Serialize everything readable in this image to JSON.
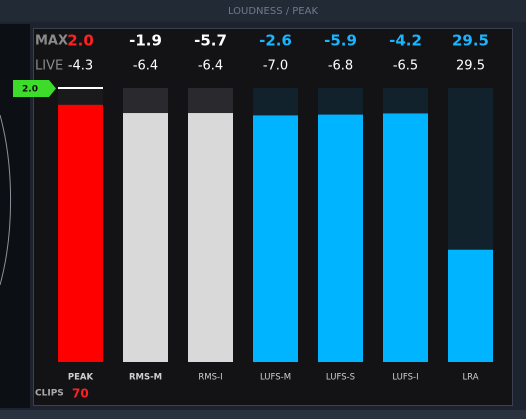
{
  "header": {
    "title": "LOUDNESS / PEAK"
  },
  "row_labels": {
    "max": "MAX",
    "live": "LIVE",
    "clips": "CLIPS"
  },
  "clips": 70,
  "meters": [
    {
      "name": "PEAK",
      "max": 2.0,
      "max_label": "2.0",
      "live": -4.3,
      "ylim": [
        -70,
        0
      ],
      "color": "#ff0000",
      "text_color": "#ff2020",
      "track": "#1a1a1d"
    },
    {
      "name": "RMS-M",
      "max": -1.9,
      "live": -6.4,
      "ylim": [
        -70,
        0
      ],
      "color": "#d9d9d9",
      "text_color": "#ffffff",
      "track": "#2a2a2e"
    },
    {
      "name": "RMS-I",
      "max": -5.7,
      "live": -6.4,
      "ylim": [
        -70,
        0
      ],
      "color": "#d9d9d9",
      "text_color": "#ffffff",
      "track": "#2a2a2e"
    },
    {
      "name": "LUFS-M",
      "max": -2.6,
      "live": -7.0,
      "live_label": "-7.0",
      "ylim": [
        -70,
        0
      ],
      "color": "#00b4ff",
      "text_color": "#1ab4ff",
      "track": "#12222c"
    },
    {
      "name": "LUFS-S",
      "max": -5.9,
      "live": -6.8,
      "ylim": [
        -70,
        0
      ],
      "color": "#00b4ff",
      "text_color": "#1ab4ff",
      "track": "#12222c"
    },
    {
      "name": "LUFS-I",
      "max": -4.2,
      "live": -6.5,
      "ylim": [
        -70,
        0
      ],
      "color": "#00b4ff",
      "text_color": "#1ab4ff",
      "track": "#12222c"
    },
    {
      "name": "LRA",
      "max": 29.5,
      "live": 29.5,
      "ylim": [
        0,
        72
      ],
      "color": "#00b4ff",
      "text_color": "#1ab4ff",
      "track": "#12222c"
    }
  ]
}
